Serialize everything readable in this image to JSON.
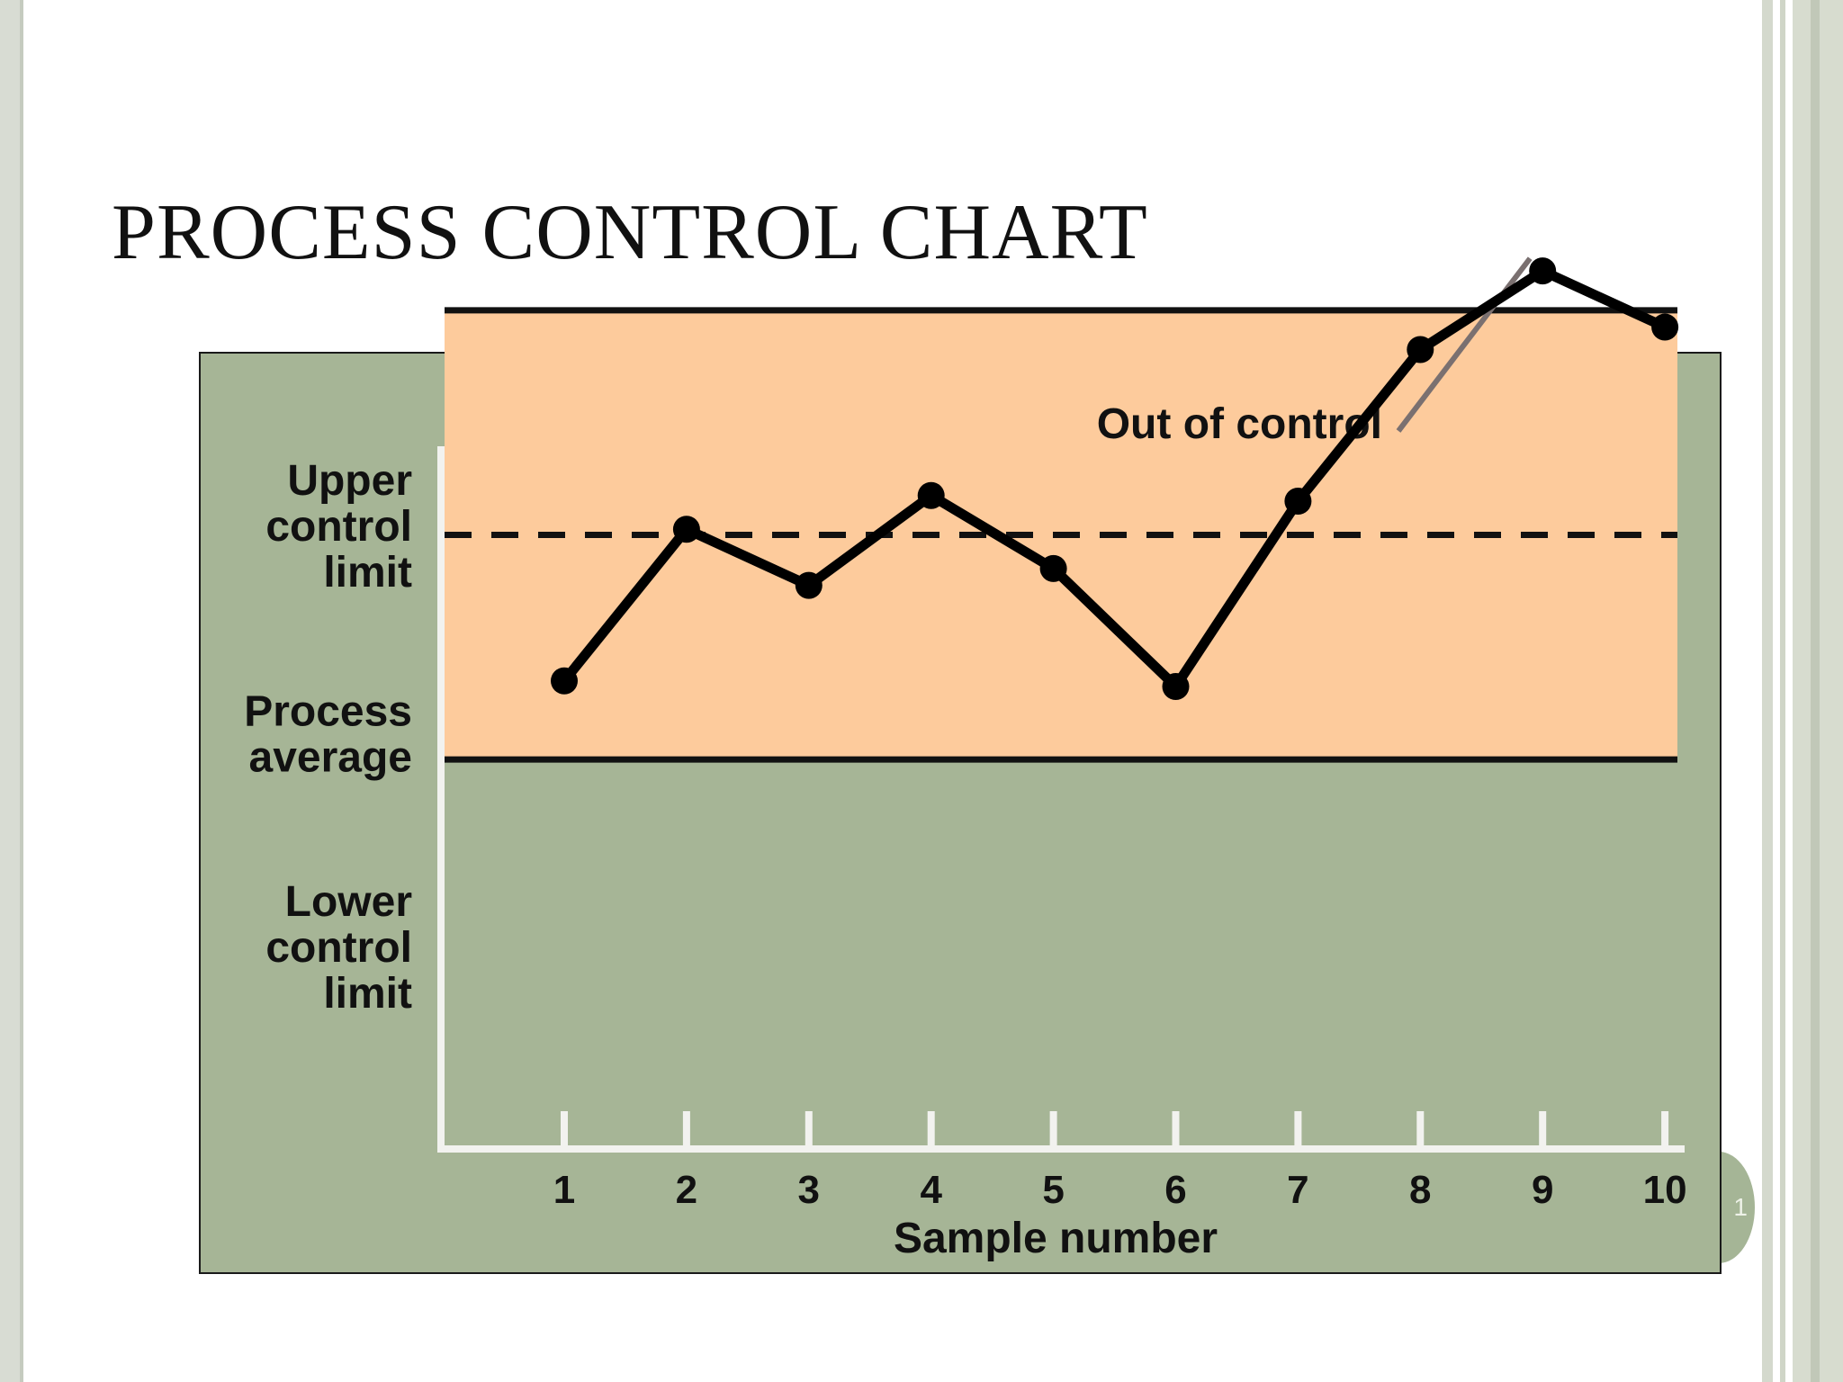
{
  "slide": {
    "title": "PROCESS CONTROL CHART",
    "slide_number": "1"
  },
  "colors": {
    "panel_background": "#a6b596",
    "in_control_band": "#fdcb9c",
    "series_line": "#000000",
    "annotation_leader": "#7a7070",
    "axis": "#f2f2ef"
  },
  "chart_data": {
    "type": "line",
    "x": [
      1,
      2,
      3,
      4,
      5,
      6,
      7,
      8,
      9,
      10
    ],
    "series": [
      {
        "values": [
          8.4,
          11.1,
          10.1,
          11.7,
          10.4,
          8.3,
          11.6,
          14.3,
          15.7,
          14.7
        ]
      }
    ],
    "xlabel": "Sample number",
    "ylabel": "",
    "xticks": [
      "1",
      "2",
      "3",
      "4",
      "5",
      "6",
      "7",
      "8",
      "9",
      "10"
    ],
    "ylim": [
      0,
      17
    ],
    "lines": {
      "upper_control_limit": {
        "label": [
          "Upper",
          "control",
          "limit"
        ],
        "value": 15
      },
      "process_average": {
        "label": [
          "Process",
          "average"
        ],
        "value": 11
      },
      "lower_control_limit": {
        "label": [
          "Lower",
          "control",
          "limit"
        ],
        "value": 7
      }
    },
    "annotation": {
      "text": "Out of control",
      "sample": 9
    },
    "grid": false
  }
}
